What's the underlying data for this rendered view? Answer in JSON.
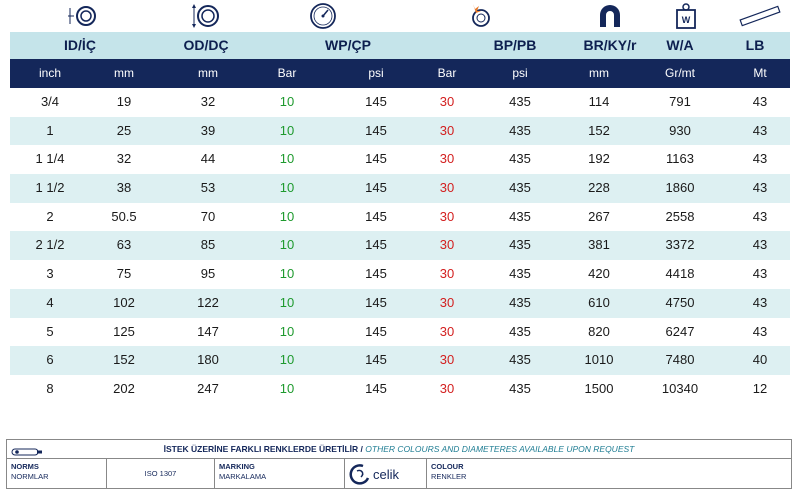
{
  "icons": [
    "inner-diameter-icon",
    "outer-diameter-icon",
    "pressure-gauge-icon",
    "burst-pressure-icon",
    "bend-radius-icon",
    "weight-icon",
    "length-icon"
  ],
  "group_headers": [
    "ID/İÇ",
    "OD/DÇ",
    "WP/ÇP",
    "BP/PB",
    "BR/KY/r",
    "W/A",
    "LB"
  ],
  "units": [
    "inch",
    "mm",
    "mm",
    "Bar",
    "psi",
    "Bar",
    "psi",
    "mm",
    "Gr/mt",
    "Mt"
  ],
  "rows": [
    [
      "3/4",
      "19",
      "32",
      "10",
      "145",
      "30",
      "435",
      "114",
      "791",
      "43"
    ],
    [
      "1",
      "25",
      "39",
      "10",
      "145",
      "30",
      "435",
      "152",
      "930",
      "43"
    ],
    [
      "1 1/4",
      "32",
      "44",
      "10",
      "145",
      "30",
      "435",
      "192",
      "1163",
      "43"
    ],
    [
      "1 1/2",
      "38",
      "53",
      "10",
      "145",
      "30",
      "435",
      "228",
      "1860",
      "43"
    ],
    [
      "2",
      "50.5",
      "70",
      "10",
      "145",
      "30",
      "435",
      "267",
      "2558",
      "43"
    ],
    [
      "2 1/2",
      "63",
      "85",
      "10",
      "145",
      "30",
      "435",
      "381",
      "3372",
      "43"
    ],
    [
      "3",
      "75",
      "95",
      "10",
      "145",
      "30",
      "435",
      "420",
      "4418",
      "43"
    ],
    [
      "4",
      "102",
      "122",
      "10",
      "145",
      "30",
      "435",
      "610",
      "4750",
      "43"
    ],
    [
      "5",
      "125",
      "147",
      "10",
      "145",
      "30",
      "435",
      "820",
      "6247",
      "43"
    ],
    [
      "6",
      "152",
      "180",
      "10",
      "145",
      "30",
      "435",
      "1010",
      "7480",
      "40"
    ],
    [
      "8",
      "202",
      "247",
      "10",
      "145",
      "30",
      "435",
      "1500",
      "10340",
      "12"
    ]
  ],
  "footer": {
    "note_tr": "İSTEK ÜZERİNE FARKLI RENKLERDE ÜRETİLİR / ",
    "note_en": "OTHER COLOURS AND DIAMETERES AVAILABLE UPON REQUEST",
    "norms_label": "NORMS",
    "norms_sub": "NORMLAR",
    "norm_value": "ISO 1307",
    "marking_label": "MARKING",
    "marking_sub": "MARKALAMA",
    "brand": "celik",
    "colour_label": "COLOUR",
    "colour_sub": "RENKLER"
  },
  "colors": {
    "navy": "#14275a",
    "light_teal": "#c5e4ea",
    "row_alt": "#ddf0f2",
    "wp_green": "#1e9a2e",
    "bp_red": "#d31f1f"
  }
}
